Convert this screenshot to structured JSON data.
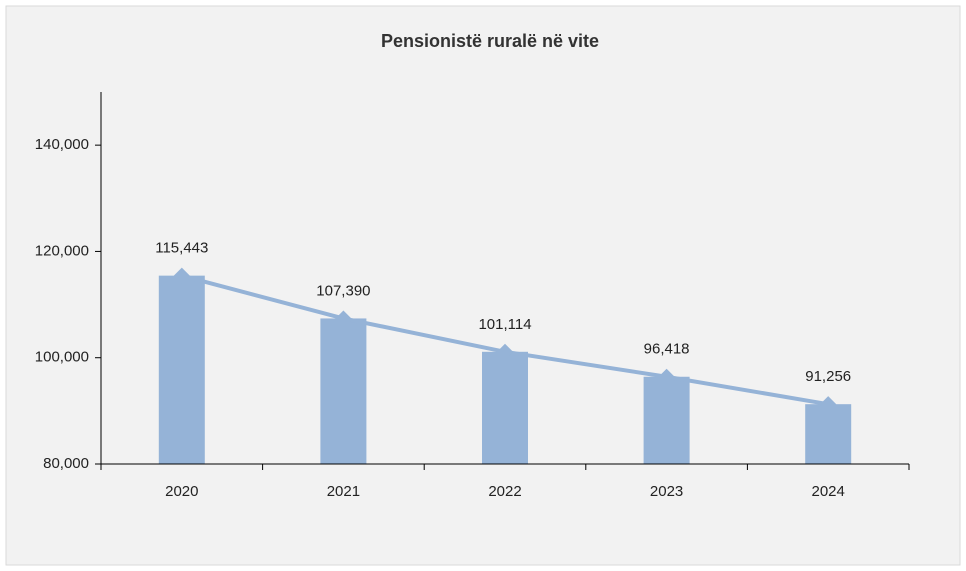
{
  "chart_data": {
    "type": "bar",
    "title": "Pensionistë ruralë në vite",
    "categories": [
      "2020",
      "2021",
      "2022",
      "2023",
      "2024"
    ],
    "values": [
      115443,
      107390,
      101114,
      96418,
      91256
    ],
    "value_labels": [
      "115,443",
      "107,390",
      "101,114",
      "96,418",
      "91,256"
    ],
    "color": "#95b3d7",
    "line_overlay": true,
    "ylim": [
      80000,
      150000
    ],
    "yticks": [
      {
        "value": 80000,
        "label": "80,000"
      },
      {
        "value": 100000,
        "label": "100,000"
      },
      {
        "value": 120000,
        "label": "120,000"
      },
      {
        "value": 140000,
        "label": "140,000"
      }
    ],
    "grid": false
  }
}
